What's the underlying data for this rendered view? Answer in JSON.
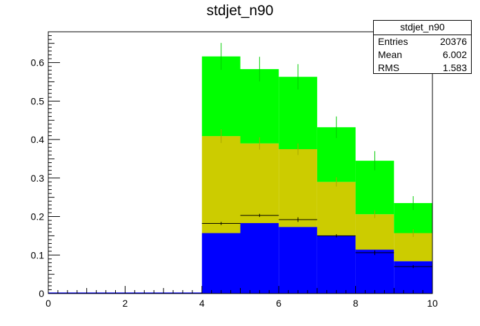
{
  "chart_data": {
    "type": "bar",
    "stacked": true,
    "title": "stdjet_n90",
    "xlabel": "",
    "ylabel": "",
    "xlim": [
      0,
      10
    ],
    "ylim": [
      0,
      0.68
    ],
    "x_ticks": [
      "0",
      "2",
      "4",
      "6",
      "8",
      "10"
    ],
    "y_ticks": [
      "0",
      "0.1",
      "0.2",
      "0.3",
      "0.4",
      "0.5",
      "0.6"
    ],
    "bin_edges": [
      4,
      5,
      6,
      7,
      8,
      9,
      10
    ],
    "series": [
      {
        "color": "#0000ff",
        "values": [
          0.157,
          0.183,
          0.173,
          0.151,
          0.114,
          0.084
        ]
      },
      {
        "color": "#cccc00",
        "values": [
          0.252,
          0.207,
          0.202,
          0.139,
          0.092,
          0.073
        ]
      },
      {
        "color": "#00ff00",
        "values": [
          0.207,
          0.193,
          0.188,
          0.142,
          0.139,
          0.078
        ]
      }
    ],
    "stack_errors": [
      0.035,
      0.032,
      0.033,
      0.028,
      0.025,
      0.018
    ],
    "mid_errors": [
      0.018,
      0.016,
      0.015,
      0.012,
      0.01,
      0.01
    ],
    "markers": {
      "color": "#000000",
      "values": [
        0.182,
        0.203,
        0.192,
        0.15,
        0.106,
        0.07
      ],
      "errors": [
        0.004,
        0.004,
        0.006,
        0.004,
        0.006,
        0.004
      ]
    },
    "grid": false,
    "legend": "none",
    "stats_box": {
      "name": "stdjet_n90",
      "rows": [
        {
          "label": "Entries",
          "value": "20376"
        },
        {
          "label": "Mean",
          "value": "6.002"
        },
        {
          "label": "RMS",
          "value": "1.583"
        }
      ]
    }
  }
}
